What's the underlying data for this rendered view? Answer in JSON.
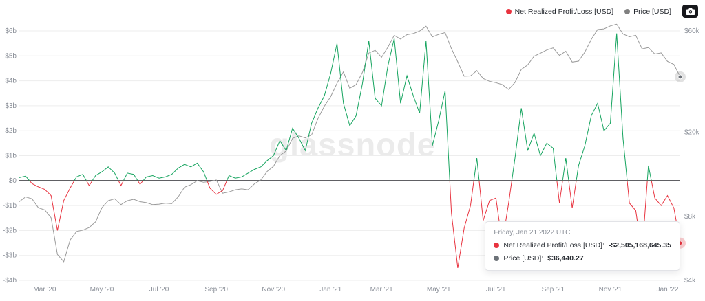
{
  "legend": {
    "items": [
      {
        "label": "Net Realized Profit/Loss [USD]",
        "color": "#e8333f"
      },
      {
        "label": "Price [USD]",
        "color": "#808080"
      }
    ],
    "camera_icon": "camera"
  },
  "watermark": {
    "text": "glassnode"
  },
  "tooltip": {
    "date": "Friday, Jan 21 2022 UTC",
    "rows": [
      {
        "label": "Net Realized Profit/Loss [USD]:",
        "value": "-$2,505,168,645.35",
        "color": "#e8333f"
      },
      {
        "label": "Price [USD]:",
        "value": "$36,440.27",
        "color": "#6d7278"
      }
    ]
  },
  "chart_data": {
    "type": "line",
    "x_range": [
      "Feb 2020",
      "Jan 2022"
    ],
    "grid": true,
    "legend_position": "top-right",
    "left_axis": {
      "scale": "linear",
      "unit": "USD billions",
      "min": -4,
      "max": 6,
      "ticks": [
        {
          "label": "$6b",
          "v": 6
        },
        {
          "label": "$5b",
          "v": 5
        },
        {
          "label": "$4b",
          "v": 4
        },
        {
          "label": "$3b",
          "v": 3
        },
        {
          "label": "$2b",
          "v": 2
        },
        {
          "label": "$1b",
          "v": 1
        },
        {
          "label": "$0",
          "v": 0
        },
        {
          "label": "-$1b",
          "v": -1
        },
        {
          "label": "-$2b",
          "v": -2
        },
        {
          "label": "-$3b",
          "v": -3
        },
        {
          "label": "-$4b",
          "v": -4
        }
      ]
    },
    "right_axis": {
      "scale": "log",
      "unit": "USD",
      "min": 4000,
      "max": 60000,
      "ticks": [
        {
          "label": "$60k",
          "v": 60000
        },
        {
          "label": "$20k",
          "v": 20000
        },
        {
          "label": "$8k",
          "v": 8000
        },
        {
          "label": "$4k",
          "v": 4000
        }
      ]
    },
    "x_ticks": [
      {
        "label": "Mar '20",
        "i": 4
      },
      {
        "label": "May '20",
        "i": 13
      },
      {
        "label": "Jul '20",
        "i": 22
      },
      {
        "label": "Sep '20",
        "i": 31
      },
      {
        "label": "Nov '20",
        "i": 40
      },
      {
        "label": "Jan '21",
        "i": 49
      },
      {
        "label": "Mar '21",
        "i": 57
      },
      {
        "label": "May '21",
        "i": 66
      },
      {
        "label": "Jul '21",
        "i": 75
      },
      {
        "label": "Sep '21",
        "i": 84
      },
      {
        "label": "Nov '21",
        "i": 93
      },
      {
        "label": "Jan '22",
        "i": 102
      }
    ],
    "highlight_index": 104,
    "series": [
      {
        "name": "Net Realized Profit/Loss [USD]",
        "axis": "left",
        "positive_color": "#16a45f",
        "negative_color": "#e8333f",
        "values_billions": [
          0.12,
          0.18,
          -0.12,
          -0.25,
          -0.35,
          -0.6,
          -2.0,
          -0.8,
          -0.3,
          0.15,
          0.25,
          -0.2,
          0.2,
          0.35,
          0.55,
          0.3,
          -0.2,
          0.3,
          0.25,
          -0.15,
          0.15,
          0.2,
          0.1,
          0.15,
          0.25,
          0.5,
          0.65,
          0.55,
          0.7,
          0.35,
          -0.3,
          -0.55,
          -0.4,
          0.2,
          0.1,
          0.15,
          0.3,
          0.45,
          0.55,
          0.8,
          1.0,
          1.6,
          1.2,
          2.1,
          1.7,
          1.2,
          2.3,
          2.9,
          3.4,
          4.3,
          5.5,
          3.1,
          2.2,
          2.6,
          3.9,
          5.6,
          3.3,
          3.0,
          4.6,
          5.7,
          3.1,
          4.2,
          3.4,
          2.7,
          5.6,
          1.4,
          2.4,
          3.6,
          -1.3,
          -3.5,
          -1.9,
          -1.0,
          0.9,
          -1.6,
          -0.8,
          -0.7,
          -2.5,
          -0.9,
          0.9,
          2.9,
          1.2,
          1.9,
          1.0,
          1.5,
          1.3,
          -0.9,
          0.9,
          -1.1,
          0.6,
          1.4,
          2.6,
          3.1,
          2.0,
          2.3,
          5.9,
          1.7,
          -0.9,
          -1.2,
          -2.9,
          0.6,
          -0.7,
          -1.0,
          -0.6,
          -1.1,
          -2.505168645
        ]
      },
      {
        "name": "Price [USD]",
        "axis": "right",
        "color": "#9a9a9a",
        "values": [
          9400,
          9900,
          9700,
          8800,
          8600,
          7900,
          5300,
          4900,
          6200,
          6800,
          6900,
          7100,
          7550,
          8800,
          9500,
          9700,
          9100,
          9500,
          9650,
          9400,
          9300,
          9100,
          9150,
          9250,
          9200,
          9900,
          11000,
          11300,
          11800,
          11600,
          11700,
          11900,
          10300,
          10450,
          10700,
          10800,
          10700,
          11400,
          11900,
          13050,
          13800,
          15500,
          16300,
          18700,
          19200,
          18800,
          19400,
          23200,
          26500,
          29400,
          34000,
          38500,
          32200,
          33500,
          38300,
          47200,
          48600,
          45100,
          50300,
          57200,
          54900,
          57600,
          58300,
          59900,
          63100,
          56200,
          57800,
          58900,
          49500,
          42900,
          36700,
          36800,
          39000,
          35800,
          34700,
          34200,
          33500,
          31800,
          34300,
          39500,
          41500,
          45600,
          47100,
          48800,
          49900,
          46000,
          48100,
          42800,
          43200,
          47700,
          54700,
          60900,
          61300,
          63300,
          64500,
          58000,
          56300,
          57200,
          49400,
          50100,
          46700,
          47300,
          43100,
          41700,
          36440.27
        ]
      }
    ]
  }
}
